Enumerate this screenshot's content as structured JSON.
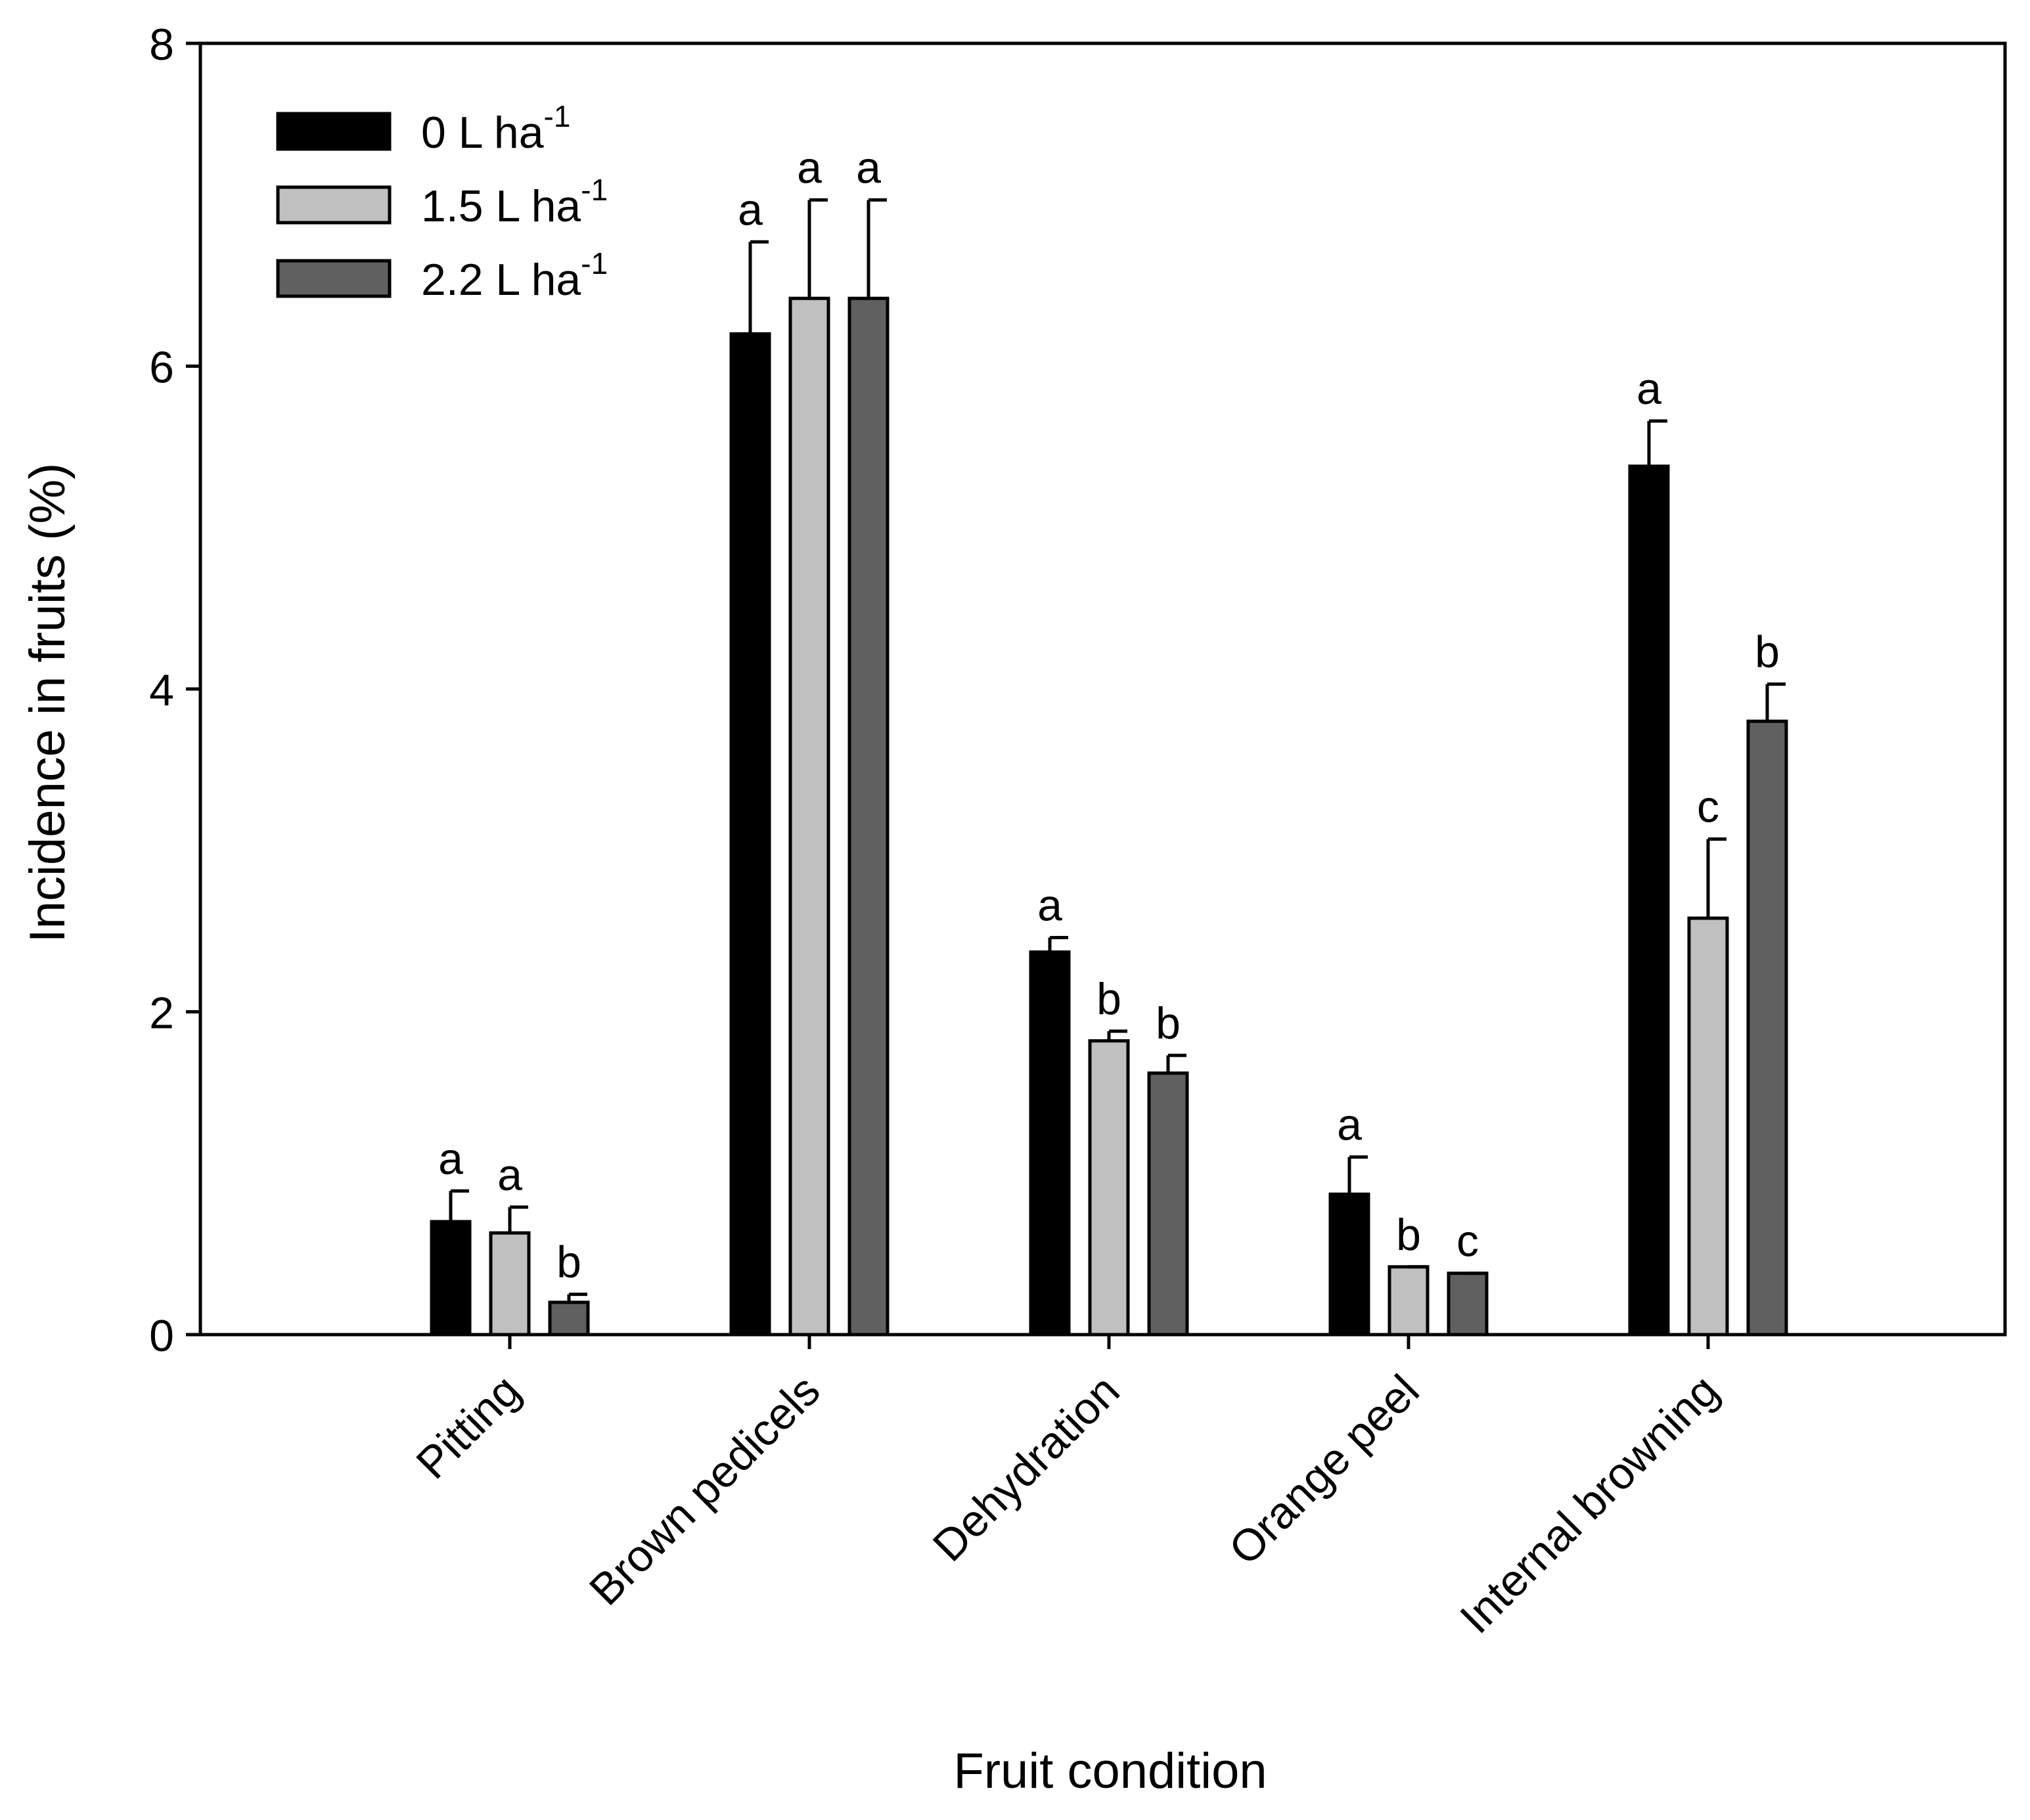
{
  "chart_data": {
    "type": "bar",
    "title": "",
    "xlabel": "Fruit condition",
    "ylabel": "Incidence in fruits (%)",
    "ylim": [
      0,
      8
    ],
    "yticks": [
      "0",
      "2",
      "4",
      "6",
      "8"
    ],
    "grid": false,
    "legend_position": "top-left",
    "categories": [
      "Pitting",
      "Brown pedicels",
      "Dehydration",
      "Orange peel",
      "Internal browning"
    ],
    "series": [
      {
        "name": "0 L ha",
        "superscript": "-1",
        "color": "#000000",
        "values": [
          0.7,
          6.2,
          2.37,
          0.87,
          5.38
        ],
        "errors": [
          0.19,
          0.57,
          0.09,
          0.23,
          0.28
        ],
        "letters": [
          "a",
          "a",
          "a",
          "a",
          "a"
        ]
      },
      {
        "name": "1.5 L ha",
        "superscript": "-1",
        "color": "#c0c0c0",
        "values": [
          0.63,
          6.42,
          1.82,
          0.42,
          2.58
        ],
        "errors": [
          0.16,
          0.61,
          0.06,
          0.0,
          0.49
        ],
        "letters": [
          "a",
          "a",
          "b",
          "b",
          "c"
        ]
      },
      {
        "name": "2.2 L ha",
        "superscript": "-1",
        "color": "#606060",
        "values": [
          0.2,
          6.42,
          1.62,
          0.38,
          3.8
        ],
        "errors": [
          0.05,
          0.61,
          0.11,
          0.0,
          0.23
        ],
        "letters": [
          "b",
          "a",
          "b",
          "c",
          "b"
        ]
      }
    ]
  }
}
